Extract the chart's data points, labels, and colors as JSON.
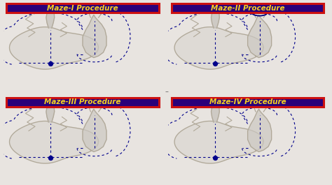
{
  "panels": [
    {
      "title": "Maze-I Procedure",
      "row": 0,
      "col": 0,
      "has_ellipse": false
    },
    {
      "title": "Maze-II Procedure",
      "row": 0,
      "col": 1,
      "has_ellipse": true
    },
    {
      "title": "Maze-III Procedure",
      "row": 1,
      "col": 0,
      "has_ellipse": false
    },
    {
      "title": "Maze-IV Procedure",
      "row": 1,
      "col": 1,
      "has_ellipse": false
    }
  ],
  "title_bg_color": "#2a007a",
  "title_border_color": "#cc1111",
  "title_text_color": "#f5d020",
  "title_fontsize": 7.5,
  "background_color": "#ffffff",
  "fig_bg_color": "#e8e4e0",
  "dot_color": "#00008b",
  "dot_size": 18,
  "dashed_color": "#00008b",
  "heart_color": "#b0a898",
  "heart_lw": 0.9,
  "dash_lw": 0.8
}
